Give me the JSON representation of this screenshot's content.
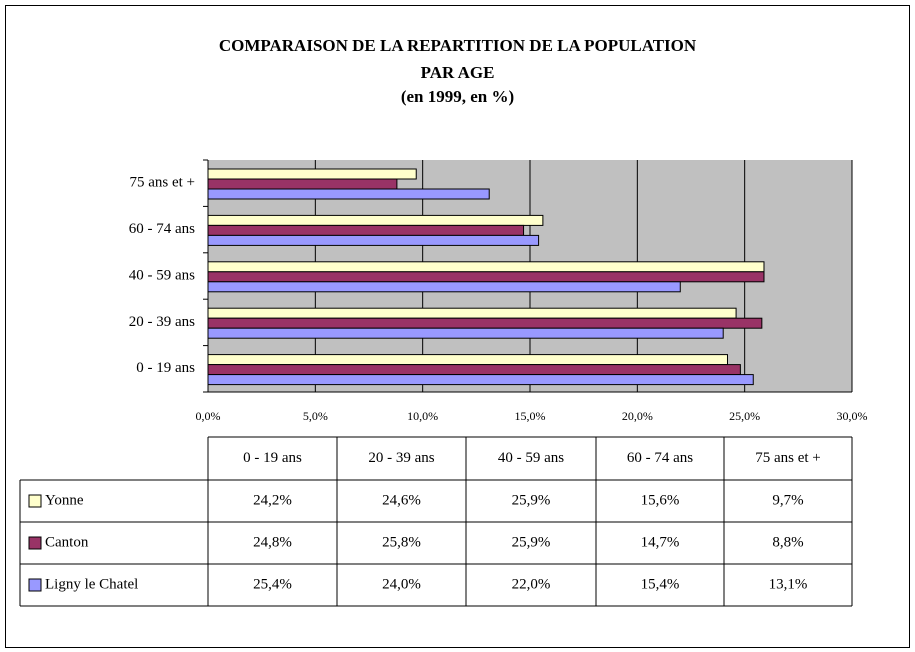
{
  "chart_data": {
    "type": "hbar",
    "title": "COMPARAISON DE LA REPARTITION DE LA POPULATION PAR AGE",
    "subtitle": "(en 1999, en %)",
    "categories": [
      "0 - 19 ans",
      "20 - 39 ans",
      "40 - 59 ans",
      "60 - 74 ans",
      "75 ans et +"
    ],
    "series": [
      {
        "name": "Yonne",
        "color": "#ffffcc",
        "values": [
          24.2,
          24.6,
          25.9,
          15.6,
          9.7
        ],
        "value_labels": [
          "24,2%",
          "24,6%",
          "25,9%",
          "15,6%",
          "9,7%"
        ]
      },
      {
        "name": "Canton",
        "color": "#993366",
        "values": [
          24.8,
          25.8,
          25.9,
          14.7,
          8.8
        ],
        "value_labels": [
          "24,8%",
          "25,8%",
          "25,9%",
          "14,7%",
          "8,8%"
        ]
      },
      {
        "name": "Ligny le Chatel",
        "color": "#9999ff",
        "values": [
          25.4,
          24.0,
          22.0,
          15.4,
          13.1
        ],
        "value_labels": [
          "25,4%",
          "24,0%",
          "22,0%",
          "15,4%",
          "13,1%"
        ]
      }
    ],
    "xlim": [
      0,
      30
    ],
    "xticks": [
      {
        "value": 0,
        "label": "0,0%"
      },
      {
        "value": 5,
        "label": "5,0%"
      },
      {
        "value": 10,
        "label": "10,0%"
      },
      {
        "value": 15,
        "label": "15,0%"
      },
      {
        "value": 20,
        "label": "20,0%"
      },
      {
        "value": 25,
        "label": "25,0%"
      },
      {
        "value": 30,
        "label": "30,0%"
      }
    ],
    "grid": true
  }
}
